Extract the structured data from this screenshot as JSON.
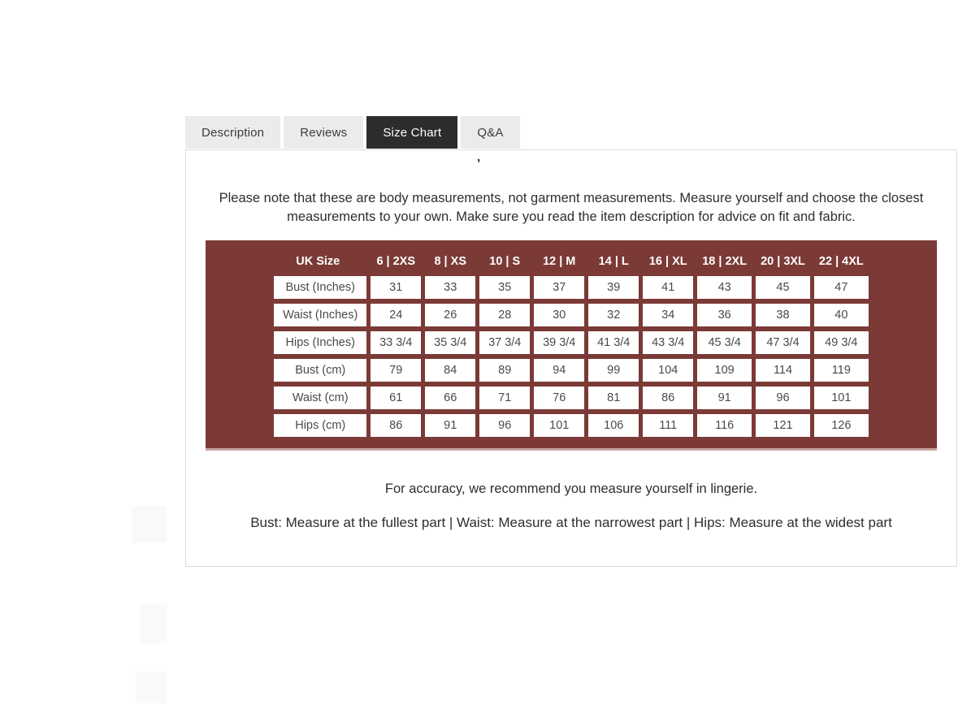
{
  "tabs": [
    {
      "label": "Description",
      "active": false
    },
    {
      "label": "Reviews",
      "active": false
    },
    {
      "label": "Size Chart",
      "active": true
    },
    {
      "label": "Q&A",
      "active": false
    }
  ],
  "panel": {
    "stray_mark": "’",
    "intro": "Please note that these are body measurements, not garment measurements. Measure yourself and choose the closest measurements to your own. Make sure you read the item description for advice on fit and fabric.",
    "size_chart": {
      "columns": [
        "UK Size",
        "6 | 2XS",
        "8 | XS",
        "10 | S",
        "12 | M",
        "14 | L",
        "16 | XL",
        "18 | 2XL",
        "20 | 3XL",
        "22 | 4XL"
      ],
      "rows": [
        {
          "label": "Bust (Inches)",
          "values": [
            "31",
            "33",
            "35",
            "37",
            "39",
            "41",
            "43",
            "45",
            "47"
          ]
        },
        {
          "label": "Waist (Inches)",
          "values": [
            "24",
            "26",
            "28",
            "30",
            "32",
            "34",
            "36",
            "38",
            "40"
          ]
        },
        {
          "label": "Hips (Inches)",
          "values": [
            "33 3/4",
            "35 3/4",
            "37 3/4",
            "39 3/4",
            "41 3/4",
            "43 3/4",
            "45 3/4",
            "47 3/4",
            "49 3/4"
          ]
        },
        {
          "label": "Bust (cm)",
          "values": [
            "79",
            "84",
            "89",
            "94",
            "99",
            "104",
            "109",
            "114",
            "119"
          ]
        },
        {
          "label": "Waist (cm)",
          "values": [
            "61",
            "66",
            "71",
            "76",
            "81",
            "86",
            "91",
            "96",
            "101"
          ]
        },
        {
          "label": "Hips (cm)",
          "values": [
            "86",
            "91",
            "96",
            "101",
            "106",
            "111",
            "116",
            "121",
            "126"
          ]
        }
      ]
    },
    "accuracy_note": "For accuracy, we recommend you measure yourself in lingerie.",
    "measure_guide": "Bust: Measure at the fullest part | Waist: Measure at the narrowest part | Hips: Measure at the widest part"
  },
  "colors": {
    "table_background": "#7b3a36",
    "active_tab_background": "#2d2c2c",
    "inactive_tab_background": "#ecebeb",
    "panel_border": "#dbdbdb",
    "cell_text": "#4a4a4a",
    "header_text": "#ffffff"
  }
}
